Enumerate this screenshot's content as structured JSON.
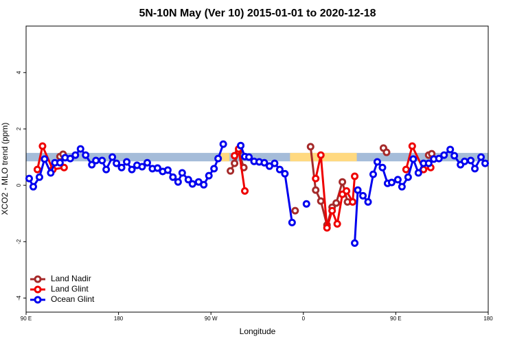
{
  "chart_data": {
    "type": "line",
    "title": "5N-10N May (Ver 10)   2015-01-01 to 2020-12-18",
    "x_label": "Longitude",
    "y_label": "XCO2 - MLO trend (ppm)",
    "xlim": [
      90,
      540
    ],
    "ylim": [
      -4.5,
      5.65
    ],
    "xticks": [
      {
        "value": 90,
        "label": "90 E"
      },
      180,
      {
        "value": 270,
        "label": "90 W"
      },
      {
        "value": 360,
        "label": "0"
      },
      {
        "value": 450,
        "label": "90 E"
      },
      {
        "value": 540,
        "label": "180"
      }
    ],
    "yticks": [
      -4,
      -2,
      0,
      2,
      4
    ],
    "band": [
      0.85,
      1.15
    ],
    "band_color": "#a5bcd9",
    "highlight_ranges": [
      [
        278,
        288
      ],
      [
        347,
        412
      ]
    ],
    "highlight_color": "#ffd980",
    "legend": "bottom-left",
    "series": [
      {
        "name": "Land Nadir",
        "color": "#a52a2a",
        "x": [
          123,
          126,
          null,
          289,
          293,
          297,
          302,
          null,
          352,
          null,
          367,
          372,
          377,
          383,
          388,
          392,
          398,
          403,
          null,
          438,
          441,
          null,
          482,
          485
        ],
        "values": [
          1.02,
          1.1,
          null,
          0.51,
          0.78,
          1.2,
          0.63,
          null,
          -0.9,
          null,
          1.37,
          -0.17,
          -0.56,
          -1.41,
          -0.78,
          -0.63,
          0.12,
          -0.59,
          null,
          1.32,
          1.17,
          null,
          1.07,
          1.12
        ]
      },
      {
        "name": "Land Glint",
        "color": "#ee0000",
        "x": [
          101,
          106,
          116,
          127,
          null,
          293,
          297,
          303,
          null,
          372,
          377,
          383,
          388,
          393,
          398,
          402,
          408,
          410,
          null,
          460,
          466,
          477,
          484
        ],
        "values": [
          0.56,
          1.39,
          0.56,
          0.63,
          null,
          1.05,
          1.29,
          -0.2,
          null,
          0.24,
          1.07,
          -1.51,
          -0.9,
          -1.37,
          -0.32,
          -0.2,
          -0.59,
          0.32,
          null,
          0.56,
          1.39,
          0.56,
          0.63
        ]
      },
      {
        "name": "Ocean Glint",
        "color": "#0000ee",
        "x": [
          93,
          97,
          103,
          108,
          114,
          118,
          123,
          128,
          133,
          138,
          143,
          148,
          154,
          158,
          164,
          168,
          174,
          178,
          183,
          188,
          193,
          198,
          203,
          208,
          213,
          218,
          223,
          228,
          233,
          238,
          242,
          248,
          252,
          258,
          263,
          268,
          273,
          277,
          282,
          null,
          299,
          303,
          307,
          312,
          317,
          322,
          327,
          332,
          337,
          342,
          349,
          null,
          363,
          null,
          410,
          413,
          418,
          423,
          428,
          432,
          437,
          442,
          446,
          452,
          456,
          462,
          467,
          472,
          477,
          482,
          487,
          492,
          497,
          503,
          507,
          513,
          517,
          523,
          527,
          533,
          537
        ],
        "values": [
          0.24,
          -0.05,
          0.29,
          0.93,
          0.44,
          0.8,
          0.8,
          0.98,
          0.95,
          1.07,
          1.29,
          1.07,
          0.73,
          0.88,
          0.88,
          0.56,
          1.0,
          0.78,
          0.63,
          0.83,
          0.56,
          0.71,
          0.66,
          0.8,
          0.59,
          0.61,
          0.49,
          0.54,
          0.29,
          0.12,
          0.44,
          0.2,
          0.05,
          0.12,
          0.02,
          0.34,
          0.59,
          0.95,
          1.46,
          null,
          1.41,
          1.02,
          1.0,
          0.85,
          0.83,
          0.8,
          0.68,
          0.78,
          0.56,
          0.41,
          -1.32,
          null,
          -0.66,
          null,
          -2.05,
          -0.17,
          -0.37,
          -0.59,
          0.39,
          0.83,
          0.63,
          0.07,
          0.1,
          0.2,
          -0.05,
          0.29,
          0.93,
          0.44,
          0.78,
          0.78,
          0.93,
          0.95,
          1.07,
          1.27,
          1.05,
          0.73,
          0.85,
          0.88,
          0.59,
          1.0,
          0.78
        ]
      }
    ]
  }
}
